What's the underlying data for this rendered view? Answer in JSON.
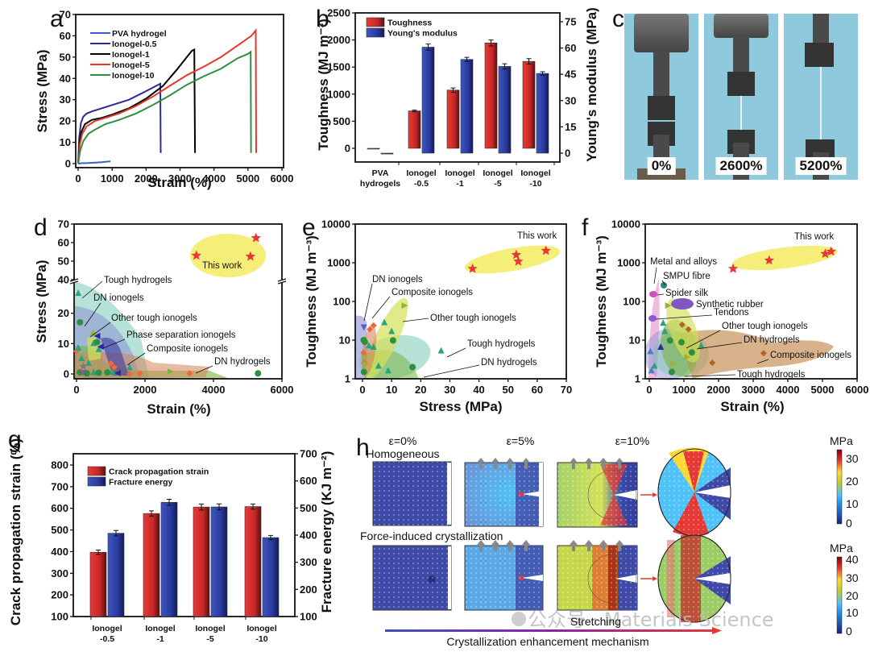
{
  "panels": {
    "a": "a",
    "b": "b",
    "c": "c",
    "d": "d",
    "e": "e",
    "f": "f",
    "g": "g",
    "h": "h"
  },
  "chart_data": [
    {
      "id": "a",
      "type": "line",
      "title": "",
      "xlabel": "Strain (%)",
      "ylabel": "Stress (MPa)",
      "xlim": [
        0,
        6000
      ],
      "ylim": [
        0,
        70
      ],
      "xticks": [
        0,
        1000,
        2000,
        3000,
        4000,
        5000,
        6000
      ],
      "yticks": [
        0,
        10,
        20,
        30,
        40,
        50,
        60,
        70
      ],
      "legend_position": "top-left",
      "series": [
        {
          "name": "PVA hydrogel",
          "color": "#3a5fcd",
          "x": [
            0,
            100,
            300,
            500,
            700,
            900,
            950
          ],
          "y": [
            0,
            0.2,
            0.3,
            0.5,
            0.7,
            1.0,
            1.1
          ]
        },
        {
          "name": "Ionogel-0.5",
          "color": "#2a2a9a",
          "x": [
            0,
            30,
            80,
            150,
            250,
            400,
            700,
            1000,
            1500,
            2000,
            2300,
            2420,
            2430
          ],
          "y": [
            0,
            12,
            19,
            22,
            23.5,
            24.5,
            26,
            27.5,
            30,
            34,
            36.5,
            37.5,
            5
          ]
        },
        {
          "name": "Ionogel-1",
          "color": "#000000",
          "x": [
            0,
            40,
            100,
            200,
            400,
            700,
            1000,
            1500,
            2000,
            2500,
            2900,
            3200,
            3350,
            3420,
            3440
          ],
          "y": [
            0,
            10,
            15,
            18.5,
            20.5,
            21.5,
            23,
            26,
            30.5,
            36.5,
            44,
            50,
            53,
            53.5,
            5
          ]
        },
        {
          "name": "Ionogel-5",
          "color": "#e23a2a",
          "x": [
            0,
            50,
            120,
            250,
            500,
            800,
            1200,
            1700,
            2200,
            2700,
            3200,
            3700,
            4200,
            4700,
            5100,
            5230,
            5240
          ],
          "y": [
            0,
            9,
            14,
            17.5,
            20,
            21.5,
            23.5,
            27,
            31.5,
            36.5,
            41.5,
            45.5,
            50,
            55.5,
            60,
            62.5,
            5
          ]
        },
        {
          "name": "Ionogel-10",
          "color": "#2f8f3f",
          "x": [
            0,
            60,
            150,
            300,
            500,
            800,
            1200,
            1700,
            2200,
            2700,
            3200,
            3700,
            4200,
            4700,
            5000,
            5080,
            5090
          ],
          "y": [
            0,
            6,
            10.5,
            14,
            16,
            18.5,
            20.5,
            23.5,
            27.5,
            32,
            37,
            41,
            44.5,
            49.5,
            51.5,
            52.5,
            5
          ]
        }
      ]
    },
    {
      "id": "b",
      "type": "bar",
      "title": "",
      "categories": [
        "PVA hydrogels",
        "Ionogel -0.5",
        "Ionogel -1",
        "Ionogel -5",
        "Ionogel -10"
      ],
      "category_lines": [
        [
          "PVA",
          "hydrogels"
        ],
        [
          "Ionogel",
          "-0.5"
        ],
        [
          "Ionogel",
          "-1"
        ],
        [
          "Ionogel",
          "-5"
        ],
        [
          "Ionogel",
          "-10"
        ]
      ],
      "ylabel": "Toughness (MJ m⁻³)",
      "y2label": "Young's modulus (MPa)",
      "ylim": [
        -250,
        2500
      ],
      "y2lim": [
        -6,
        78
      ],
      "yticks": [
        0,
        500,
        1000,
        1500,
        2000,
        2500
      ],
      "y2ticks": [
        0,
        15,
        30,
        45,
        60,
        75
      ],
      "legend_position": "top-left",
      "series": [
        {
          "name": "Toughness",
          "axis": "left",
          "color": "#d92b2b",
          "values": [
            0,
            690,
            1075,
            1945,
            1605
          ],
          "errors": [
            0,
            15,
            40,
            55,
            50
          ]
        },
        {
          "name": "Young's modulus",
          "axis": "right",
          "color": "#2c3e9e",
          "values": [
            -0.5,
            60.5,
            53.5,
            49.5,
            45.5
          ],
          "errors": [
            0,
            1.8,
            1.2,
            1.5,
            1.0
          ]
        }
      ]
    },
    {
      "id": "d",
      "type": "scatter",
      "xlabel": "Strain (%)",
      "ylabel": "Stress (MPa)",
      "xlim": [
        0,
        6000
      ],
      "ylim_upper": [
        40,
        70
      ],
      "ylim_lower": [
        0,
        30
      ],
      "xticks": [
        0,
        2000,
        4000,
        6000
      ],
      "yticks_upper": [
        40,
        50,
        60,
        70
      ],
      "yticks_lower": [
        0,
        10,
        20
      ],
      "annotations": [
        "Tough hydrogels",
        "DN ionogels",
        "Other tough ionogels",
        "Phase separation ionogels",
        "Composite ionogels",
        "DN hydrogels"
      ],
      "this_work_label": "This work",
      "this_work": [
        {
          "x": 3500,
          "y": 53
        },
        {
          "x": 5080,
          "y": 52.5
        },
        {
          "x": 5240,
          "y": 62.5
        }
      ],
      "points": [
        {
          "x": 50,
          "y": 26.5,
          "m": "tri",
          "c": "#2aa37a"
        },
        {
          "x": 100,
          "y": 17,
          "m": "circ",
          "c": "#2f8f3f"
        },
        {
          "x": 0,
          "y": 7.5,
          "m": "dia",
          "c": "#f0683a"
        },
        {
          "x": 50,
          "y": 8.5,
          "m": "tri",
          "c": "#2aa37a"
        },
        {
          "x": 150,
          "y": 5,
          "m": "tri",
          "c": "#2aa37a"
        },
        {
          "x": 350,
          "y": 3.5,
          "m": "tri",
          "c": "#2aa37a"
        },
        {
          "x": 200,
          "y": 2.5,
          "m": "star",
          "c": "#777"
        },
        {
          "x": 100,
          "y": 0.5,
          "m": "circ",
          "c": "#2f8f3f"
        },
        {
          "x": 200,
          "y": 0.3,
          "m": "tridown",
          "c": "#b040c0"
        },
        {
          "x": 300,
          "y": 0.2,
          "m": "circ",
          "c": "#2f8f3f"
        },
        {
          "x": 500,
          "y": 0.4,
          "m": "tri",
          "c": "#2aa37a"
        },
        {
          "x": 650,
          "y": 0.4,
          "m": "circ",
          "c": "#2f8f3f"
        },
        {
          "x": 500,
          "y": 10,
          "m": "tri",
          "c": "#2aa37a"
        },
        {
          "x": 600,
          "y": 10.5,
          "m": "circ",
          "c": "#2f8f3f"
        },
        {
          "x": 650,
          "y": 8,
          "m": "tri",
          "c": "#2aa37a"
        },
        {
          "x": 480,
          "y": 13.5,
          "m": "tri",
          "c": "#9ab040"
        },
        {
          "x": 600,
          "y": 12.5,
          "m": "triL",
          "c": "#2a2a9a"
        },
        {
          "x": 700,
          "y": 9,
          "m": "triL",
          "c": "#2a2a9a"
        },
        {
          "x": 900,
          "y": 0.5,
          "m": "circ",
          "c": "#2f8f3f"
        },
        {
          "x": 1000,
          "y": 3.5,
          "m": "dia",
          "c": "#f0683a"
        },
        {
          "x": 1100,
          "y": 2.2,
          "m": "dia",
          "c": "#f0683a"
        },
        {
          "x": 1050,
          "y": 0.5,
          "m": "tri",
          "c": "#2aa37a"
        },
        {
          "x": 1200,
          "y": 0.3,
          "m": "triL",
          "c": "#2a2a9a"
        },
        {
          "x": 1550,
          "y": 2,
          "m": "tri",
          "c": "#2aa37a"
        },
        {
          "x": 1550,
          "y": 0,
          "m": "dia",
          "c": "#f0683a"
        },
        {
          "x": 1850,
          "y": 0.2,
          "m": "dia",
          "c": "#f0683a"
        },
        {
          "x": 2750,
          "y": 0.8,
          "m": "triR",
          "c": "#7cb342"
        },
        {
          "x": 3300,
          "y": 0.2,
          "m": "dia",
          "c": "#f0683a"
        },
        {
          "x": 5300,
          "y": 0.2,
          "m": "circ",
          "c": "#2f8f3f"
        }
      ]
    },
    {
      "id": "e",
      "type": "scatter",
      "xlabel": "Stress (MPa)",
      "ylabel": "Toughness (MJ m⁻³)",
      "xlim": [
        -2,
        70
      ],
      "ylim": [
        1,
        10000
      ],
      "yscale": "log",
      "xticks": [
        0,
        10,
        20,
        30,
        40,
        50,
        60,
        70
      ],
      "yticks": [
        1,
        10,
        100,
        1000,
        10000
      ],
      "annotations": [
        "DN ionogels",
        "Composite ionogels",
        "Other tough ionogels",
        "Tough hydrogels",
        "DN hydrogels"
      ],
      "this_work_label": "This work",
      "this_work": [
        {
          "x": 37.8,
          "y": 700
        },
        {
          "x": 52.8,
          "y": 1600
        },
        {
          "x": 53.5,
          "y": 1080
        },
        {
          "x": 63,
          "y": 2050
        }
      ],
      "points": [
        {
          "x": 0.5,
          "y": 21,
          "m": "tridown",
          "c": "#5a5ac0"
        },
        {
          "x": 2.5,
          "y": 19,
          "m": "dia",
          "c": "#f0683a"
        },
        {
          "x": 3.8,
          "y": 24,
          "m": "dia",
          "c": "#f0683a"
        },
        {
          "x": 0.4,
          "y": 10,
          "m": "circ",
          "c": "#2f8f3f"
        },
        {
          "x": 0.8,
          "y": 9,
          "m": "circ",
          "c": "#2f8f3f"
        },
        {
          "x": 2.2,
          "y": 7,
          "m": "tri",
          "c": "#2aa37a"
        },
        {
          "x": 3.8,
          "y": 6.5,
          "m": "tri",
          "c": "#2aa37a"
        },
        {
          "x": 0.3,
          "y": 4.7,
          "m": "dia",
          "c": "#f0683a"
        },
        {
          "x": 0.8,
          "y": 3.6,
          "m": "triR",
          "c": "#9ab040"
        },
        {
          "x": 0.6,
          "y": 2.6,
          "m": "dia",
          "c": "#f0683a"
        },
        {
          "x": 1.2,
          "y": 2.4,
          "m": "triR",
          "c": "#9ab040"
        },
        {
          "x": 0.5,
          "y": 1.5,
          "m": "circ",
          "c": "#2f8f3f"
        },
        {
          "x": 14.5,
          "y": 78,
          "m": "triR",
          "c": "#9ab040"
        },
        {
          "x": 7.5,
          "y": 28,
          "m": "tri",
          "c": "#2aa37a"
        },
        {
          "x": 10,
          "y": 16.5,
          "m": "tri",
          "c": "#2aa37a"
        },
        {
          "x": 10.5,
          "y": 9.8,
          "m": "circ",
          "c": "#2f8f3f"
        },
        {
          "x": 5.5,
          "y": 2.1,
          "m": "tri",
          "c": "#2aa37a"
        },
        {
          "x": 8.8,
          "y": 1.6,
          "m": "tri",
          "c": "#2aa37a"
        },
        {
          "x": 17.2,
          "y": 2,
          "m": "circ",
          "c": "#2f8f3f"
        },
        {
          "x": 27,
          "y": 5.2,
          "m": "tri",
          "c": "#2aa37a"
        }
      ]
    },
    {
      "id": "f",
      "type": "scatter",
      "xlabel": "Strain (%)",
      "ylabel": "Toughness (MJ m⁻³)",
      "xlim": [
        -100,
        6000
      ],
      "ylim": [
        1,
        10000
      ],
      "yscale": "log",
      "xticks": [
        0,
        1000,
        2000,
        3000,
        4000,
        5000,
        6000
      ],
      "yticks": [
        1,
        10,
        100,
        1000,
        10000
      ],
      "annotations": [
        "Metal and alloys",
        "SMPU fibre",
        "Spider silk",
        "Synthetic rubber",
        "Tendons",
        "Other tough ionogels",
        "DN hydrogels",
        "Composite ionogels",
        "Tough hydrogels"
      ],
      "this_work_label": "This work",
      "this_work": [
        {
          "x": 2420,
          "y": 700
        },
        {
          "x": 3460,
          "y": 1150
        },
        {
          "x": 5080,
          "y": 1700
        },
        {
          "x": 5250,
          "y": 1950
        }
      ],
      "points": [
        {
          "x": 400,
          "y": 27,
          "m": "tri",
          "c": "#2aa37a"
        },
        {
          "x": 450,
          "y": 16.5,
          "m": "tri",
          "c": "#2aa37a"
        },
        {
          "x": 950,
          "y": 25,
          "m": "dia",
          "c": "#b5652a"
        },
        {
          "x": 1130,
          "y": 19,
          "m": "dia",
          "c": "#b5652a"
        },
        {
          "x": 600,
          "y": 9.8,
          "m": "circ",
          "c": "#2f8f3f"
        },
        {
          "x": 930,
          "y": 8.8,
          "m": "circ",
          "c": "#2f8f3f"
        },
        {
          "x": 330,
          "y": 6.5,
          "m": "tri",
          "c": "#2a2a9a"
        },
        {
          "x": 1500,
          "y": 7,
          "m": "tri",
          "c": "#2aa37a"
        },
        {
          "x": 30,
          "y": 5,
          "m": "tri",
          "c": "#4a7fc0"
        },
        {
          "x": 1230,
          "y": 4.8,
          "m": "circ",
          "c": "#2f8f3f"
        },
        {
          "x": 1100,
          "y": 3.6,
          "m": "triR",
          "c": "#9ab040"
        },
        {
          "x": 3300,
          "y": 4.6,
          "m": "dia",
          "c": "#b5652a"
        },
        {
          "x": 700,
          "y": 2.5,
          "m": "triR",
          "c": "#9ab040"
        },
        {
          "x": 1820,
          "y": 2.6,
          "m": "dia",
          "c": "#b5652a"
        },
        {
          "x": 150,
          "y": 2.1,
          "m": "tri",
          "c": "#2aa37a"
        },
        {
          "x": 60,
          "y": 1.6,
          "m": "tri",
          "c": "#4a7fc0"
        },
        {
          "x": 650,
          "y": 1.5,
          "m": "circ",
          "c": "#2f8f3f"
        },
        {
          "x": 550,
          "y": 78,
          "m": "triR",
          "c": "#9ab040"
        }
      ]
    },
    {
      "id": "g",
      "type": "bar",
      "categories": [
        "Ionogel -0.5",
        "Ionogel -1",
        "Ionogel -5",
        "Ionogel -10"
      ],
      "category_lines": [
        [
          "Ionogel",
          "-0.5"
        ],
        [
          "Ionogel",
          "-1"
        ],
        [
          "Ionogel",
          "-5"
        ],
        [
          "Ionogel",
          "-10"
        ]
      ],
      "ylabel": "Crack propagation strain (%)",
      "y2label": "Fracture energy (KJ m⁻²)",
      "ylim": [
        100,
        850
      ],
      "y2lim": [
        100,
        700
      ],
      "yticks": [
        100,
        200,
        300,
        400,
        500,
        600,
        700,
        800
      ],
      "y2ticks": [
        100,
        200,
        300,
        400,
        500,
        600,
        700
      ],
      "legend_position": "top-left",
      "series": [
        {
          "name": "Crack propagation strain",
          "axis": "left",
          "color": "#d92b2b",
          "values": [
            397,
            576,
            606,
            608
          ],
          "errors": [
            10,
            12,
            14,
            12
          ]
        },
        {
          "name": "Fracture energy",
          "axis": "right",
          "color": "#2c3e9e",
          "values": [
            407,
            521,
            504,
            391
          ],
          "errors": [
            10,
            11,
            11,
            8
          ]
        }
      ]
    }
  ],
  "photo_panel": {
    "labels": [
      "0%",
      "2600%",
      "5200%"
    ]
  },
  "simulation_panel": {
    "column_titles": [
      "ε=0%",
      "ε=5%",
      "ε=10%"
    ],
    "row1_label": "Homogeneous",
    "row2_label": "Force-induced crystallization",
    "stretching_label": "Stretching",
    "mechanism_label": "Crystallization enhancement mechanism",
    "colorbar1": {
      "unit": "MPa",
      "ticks": [
        0,
        10,
        20,
        30
      ]
    },
    "colorbar2": {
      "unit": "MPa",
      "ticks": [
        0,
        10,
        20,
        30,
        40
      ]
    },
    "watermark": "公众号 · Materials Science"
  }
}
